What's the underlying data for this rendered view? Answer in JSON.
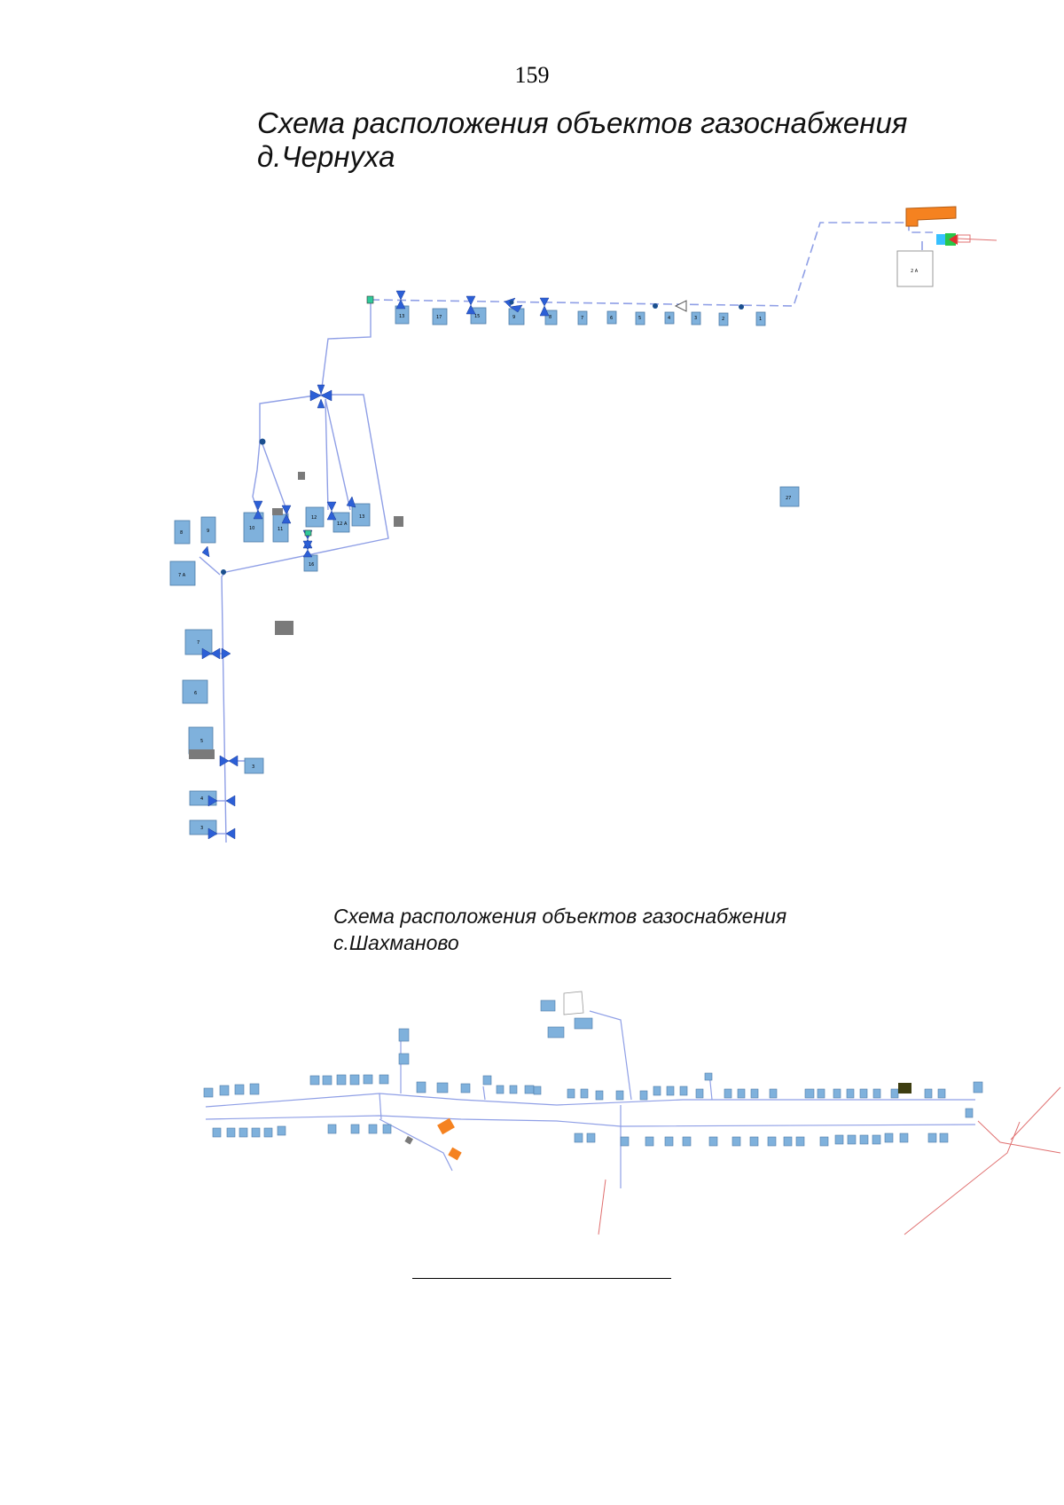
{
  "page": {
    "number": "159"
  },
  "scheme_chernukha": {
    "title_line1": "Схема расположения объектов газоснабжения",
    "title_line2": "д.Чернуха",
    "colors": {
      "building": "#7fb1dc",
      "pipe": "#8f9fe6",
      "valve": "#2c5fd6",
      "boiler": "#f58220",
      "gray": "#7a7a7a",
      "gas_line": "#e07070"
    }
  },
  "scheme_shakhmanovo": {
    "title_line1": "Схема расположения объектов газоснабжения",
    "title_line2": "с.Шахманово"
  },
  "footnote": {
    "rule": true
  }
}
